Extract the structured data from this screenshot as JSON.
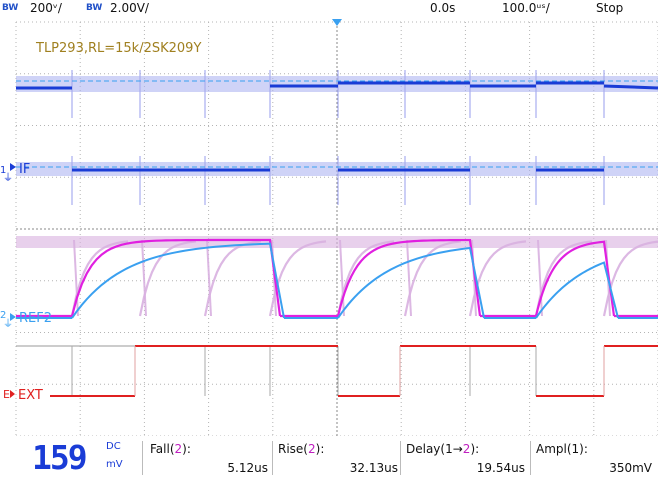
{
  "topbar": {
    "bw1": "BW",
    "ch1_scale": "200ᵛ/",
    "bw2": "BW",
    "ch2_scale": "2.00V/",
    "delay": "0.0s",
    "timebase": "100.0ᵘˢ/",
    "run_state": "Stop"
  },
  "screen": {
    "annotation": "TLP293,RL=15k/2SK209Y",
    "ch1_label": "IF",
    "ch1_number": "1",
    "ref_label": "REF2",
    "ref_number": "2",
    "ext_label": "EXT",
    "ext_marker": "E"
  },
  "colors": {
    "ch1": "#1a3cd6",
    "ch1_persist": "#a8aef0",
    "ch2": "#e020e0",
    "ch2_persist": "#d8b0e0",
    "ref": "#3aa0f0",
    "ext": "#e02020",
    "grid": "#b4b4b4"
  },
  "measurements": {
    "dvm_value": "159",
    "dvm_mode": "DC",
    "dvm_unit": "mV",
    "fall_label": "Fall(",
    "fall_ch": "2",
    "fall_close": "):",
    "fall_value": "5.12us",
    "rise_label": "Rise(",
    "rise_ch": "2",
    "rise_close": "):",
    "rise_value": "32.13us",
    "delay_label": "Delay(1→",
    "delay_ch": "2",
    "delay_close": "):",
    "delay_value": "19.54us",
    "ampl_label": "Ampl(1):",
    "ampl_value": "350mV"
  }
}
